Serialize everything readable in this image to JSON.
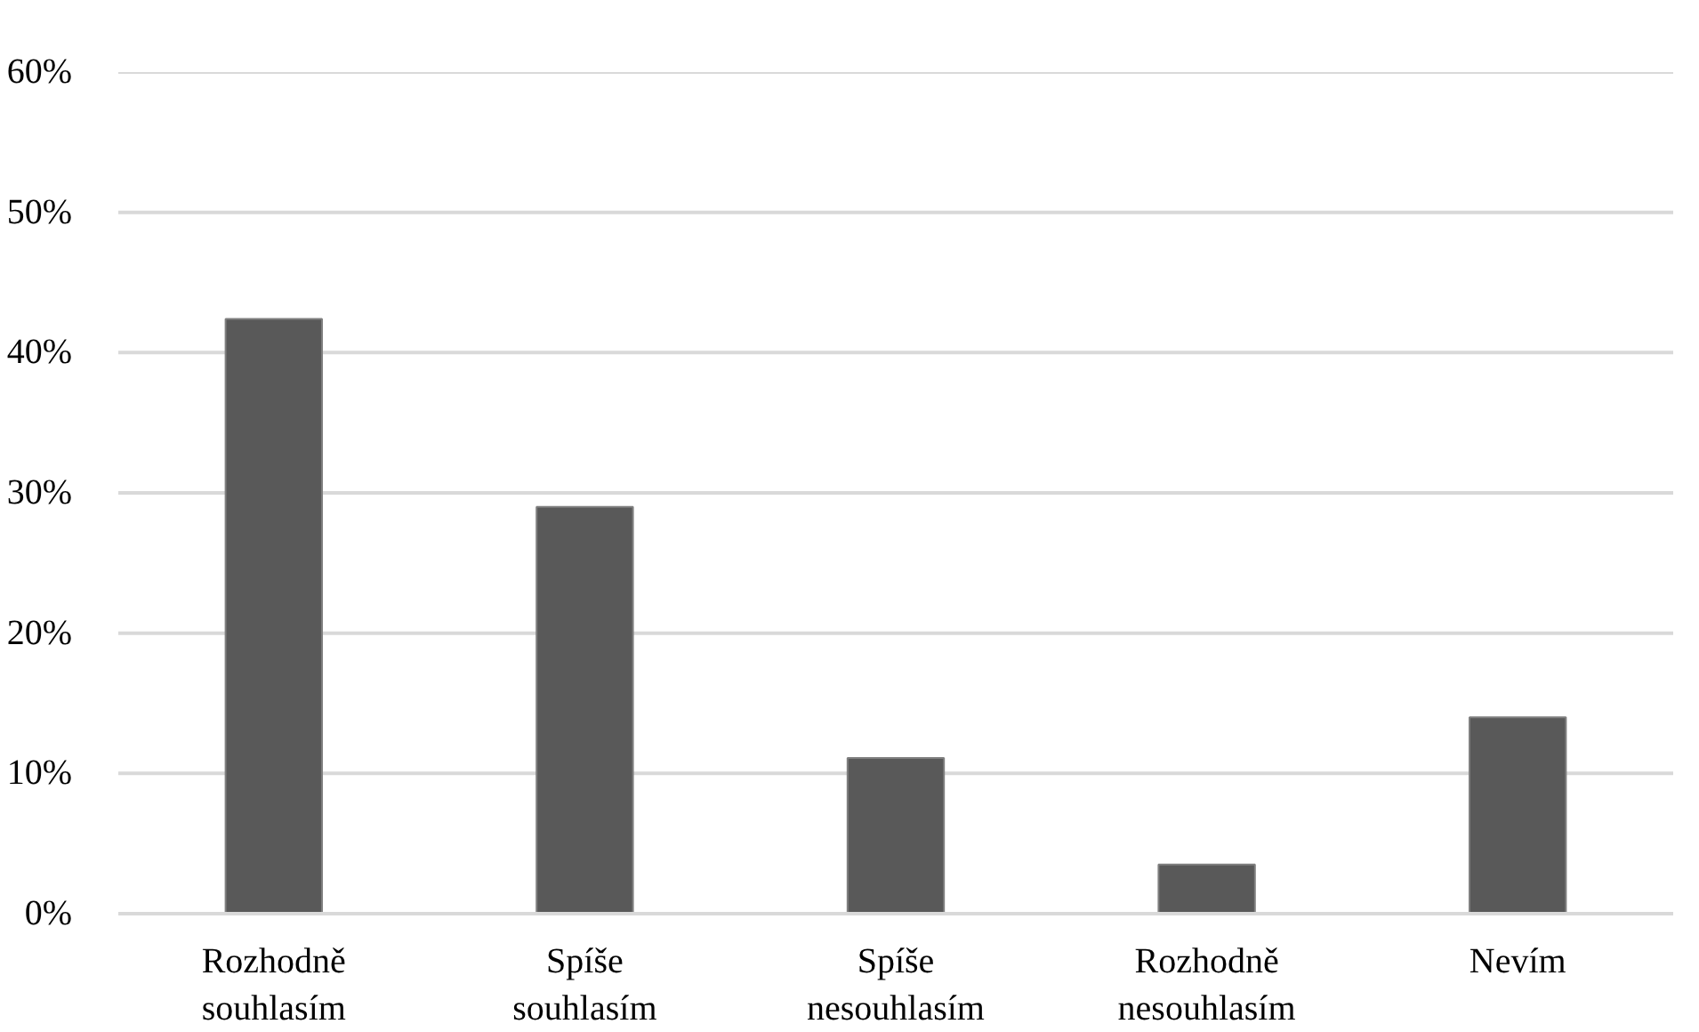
{
  "chart_data": {
    "type": "bar",
    "categories": [
      "Rozhodně\nsouhlasím",
      "Spíše\nsouhlasím",
      "Spíše\nnesouhlasím",
      "Rozhodně\nnesouhlasím",
      "Nevím"
    ],
    "values": [
      0.424,
      0.29,
      0.111,
      0.035,
      0.14
    ],
    "color": "#595959",
    "ylim": [
      0,
      0.6
    ],
    "yticks": [
      {
        "value": 0,
        "label": "0%"
      },
      {
        "value": 0.1,
        "label": "10%"
      },
      {
        "value": 0.2,
        "label": "20%"
      },
      {
        "value": 0.3,
        "label": "30%"
      },
      {
        "value": 0.4,
        "label": "40%"
      },
      {
        "value": 0.5,
        "label": "50%"
      },
      {
        "value": 0.6,
        "label": "60%"
      }
    ],
    "grid": "y"
  }
}
